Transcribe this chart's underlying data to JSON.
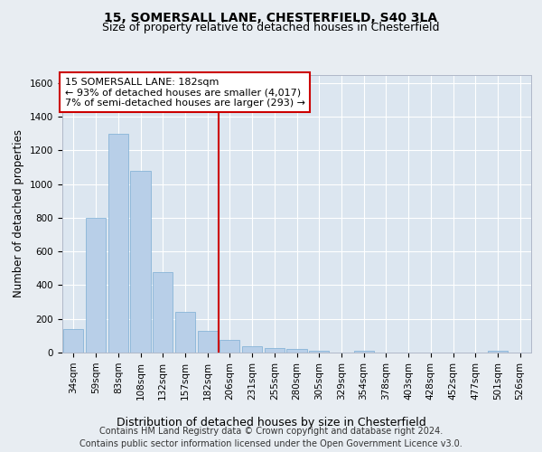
{
  "title1": "15, SOMERSALL LANE, CHESTERFIELD, S40 3LA",
  "title2": "Size of property relative to detached houses in Chesterfield",
  "xlabel": "Distribution of detached houses by size in Chesterfield",
  "ylabel": "Number of detached properties",
  "footer1": "Contains HM Land Registry data © Crown copyright and database right 2024.",
  "footer2": "Contains public sector information licensed under the Open Government Licence v3.0.",
  "property_label": "15 SOMERSALL LANE: 182sqm",
  "annotation_line1": "← 93% of detached houses are smaller (4,017)",
  "annotation_line2": "7% of semi-detached houses are larger (293) →",
  "categories": [
    "34sqm",
    "59sqm",
    "83sqm",
    "108sqm",
    "132sqm",
    "157sqm",
    "182sqm",
    "206sqm",
    "231sqm",
    "255sqm",
    "280sqm",
    "305sqm",
    "329sqm",
    "354sqm",
    "378sqm",
    "403sqm",
    "428sqm",
    "452sqm",
    "477sqm",
    "501sqm",
    "526sqm"
  ],
  "values": [
    140,
    800,
    1300,
    1080,
    480,
    240,
    130,
    75,
    40,
    25,
    20,
    10,
    0,
    10,
    0,
    0,
    0,
    0,
    0,
    10,
    0
  ],
  "bar_color": "#b8cfe8",
  "bar_edge_color": "#7aadd4",
  "vline_color": "#cc0000",
  "vline_index": 6.5,
  "ylim": [
    0,
    1650
  ],
  "yticks": [
    0,
    200,
    400,
    600,
    800,
    1000,
    1200,
    1400,
    1600
  ],
  "bg_color": "#e8edf2",
  "plot_bg_color": "#dce6f0",
  "title1_fontsize": 10,
  "title2_fontsize": 9,
  "annotation_fontsize": 8,
  "tick_fontsize": 7.5,
  "ylabel_fontsize": 8.5,
  "xlabel_fontsize": 9,
  "footer_fontsize": 7
}
